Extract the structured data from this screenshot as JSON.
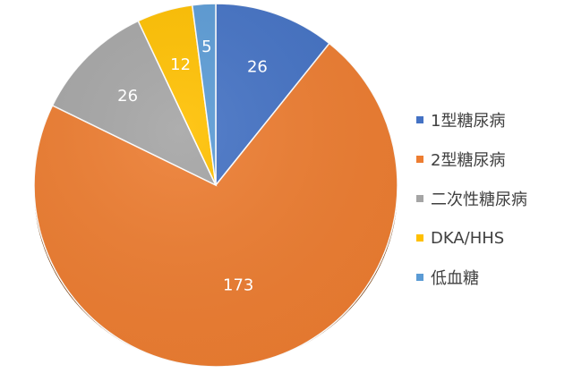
{
  "chart_data": {
    "type": "pie",
    "categories": [
      "1型糖尿病",
      "2型糖尿病",
      "二次性糖尿病",
      "DKA/HHS",
      "低血糖"
    ],
    "values": [
      26,
      173,
      26,
      12,
      5
    ],
    "colors": [
      "#4472C4",
      "#ED7D31",
      "#A5A5A5",
      "#FFC000",
      "#5B9BD5"
    ],
    "data_labels": [
      "26",
      "173",
      "26",
      "12",
      "5"
    ],
    "legend_position": "right",
    "title": "",
    "start_angle": "top, clockwise"
  }
}
